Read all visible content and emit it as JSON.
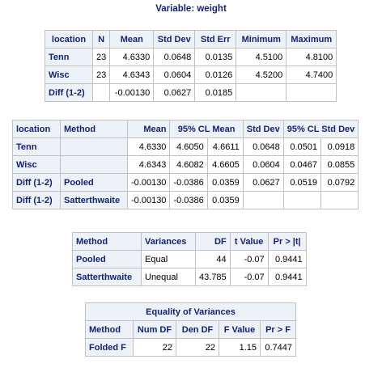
{
  "title": "Variable: weight",
  "stats_table": {
    "headers": [
      "location",
      "N",
      "Mean",
      "Std Dev",
      "Std Err",
      "Minimum",
      "Maximum"
    ],
    "rows": [
      {
        "label": "Tenn",
        "n": "23",
        "mean": "4.6330",
        "std_dev": "0.0648",
        "std_err": "0.0135",
        "min": "4.5100",
        "max": "4.8100"
      },
      {
        "label": "Wisc",
        "n": "23",
        "mean": "4.6343",
        "std_dev": "0.0604",
        "std_err": "0.0126",
        "min": "4.5200",
        "max": "4.7400"
      },
      {
        "label": "Diff (1-2)",
        "n": "",
        "mean": "-0.00130",
        "std_dev": "0.0627",
        "std_err": "0.0185",
        "min": "",
        "max": ""
      }
    ]
  },
  "cl_table": {
    "headers": [
      "location",
      "Method",
      "Mean",
      "95% CL Mean",
      "Std Dev",
      "95% CL Std Dev"
    ],
    "rows": [
      {
        "label": "Tenn",
        "method": "",
        "mean": "4.6330",
        "cl_lo": "4.6050",
        "cl_hi": "4.6611",
        "std_dev": "0.0648",
        "sd_lo": "0.0501",
        "sd_hi": "0.0918"
      },
      {
        "label": "Wisc",
        "method": "",
        "mean": "4.6343",
        "cl_lo": "4.6082",
        "cl_hi": "4.6605",
        "std_dev": "0.0604",
        "sd_lo": "0.0467",
        "sd_hi": "0.0855"
      },
      {
        "label": "Diff (1-2)",
        "method": "Pooled",
        "mean": "-0.00130",
        "cl_lo": "-0.0386",
        "cl_hi": "0.0359",
        "std_dev": "0.0627",
        "sd_lo": "0.0519",
        "sd_hi": "0.0792"
      },
      {
        "label": "Diff (1-2)",
        "method": "Satterthwaite",
        "mean": "-0.00130",
        "cl_lo": "-0.0386",
        "cl_hi": "0.0359",
        "std_dev": "",
        "sd_lo": "",
        "sd_hi": ""
      }
    ]
  },
  "ttest_table": {
    "headers": [
      "Method",
      "Variances",
      "DF",
      "t Value",
      "Pr > |t|"
    ],
    "rows": [
      {
        "method": "Pooled",
        "variances": "Equal",
        "df": "44",
        "t": "-0.07",
        "p": "0.9441"
      },
      {
        "method": "Satterthwaite",
        "variances": "Unequal",
        "df": "43.785",
        "t": "-0.07",
        "p": "0.9441"
      }
    ]
  },
  "equality_table": {
    "caption": "Equality of Variances",
    "headers": [
      "Method",
      "Num DF",
      "Den DF",
      "F Value",
      "Pr > F"
    ],
    "rows": [
      {
        "method": "Folded F",
        "num_df": "22",
        "den_df": "22",
        "f": "1.15",
        "p": "0.7447"
      }
    ]
  }
}
